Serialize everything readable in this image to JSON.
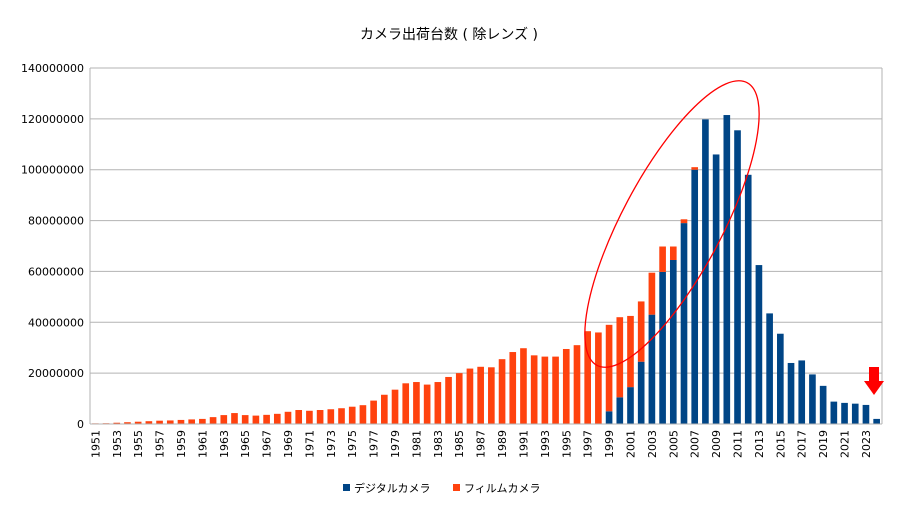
{
  "chart_data": {
    "type": "bar",
    "stacked": true,
    "title": "カメラ出荷台数 ( 除レンズ )",
    "xlabel": "",
    "ylabel": "",
    "ylim": [
      0,
      140000000
    ],
    "yticks": [
      "0",
      "20000000",
      "40000000",
      "60000000",
      "80000000",
      "100000000",
      "120000000",
      "140000000"
    ],
    "ytick_values": [
      0,
      20000000,
      40000000,
      60000000,
      80000000,
      100000000,
      120000000,
      140000000
    ],
    "grid": true,
    "legend_position": "bottom",
    "categories": [
      1951,
      1952,
      1953,
      1954,
      1955,
      1956,
      1957,
      1958,
      1959,
      1960,
      1961,
      1962,
      1963,
      1964,
      1965,
      1966,
      1967,
      1968,
      1969,
      1970,
      1971,
      1972,
      1973,
      1974,
      1975,
      1976,
      1977,
      1978,
      1979,
      1980,
      1981,
      1982,
      1983,
      1984,
      1985,
      1986,
      1987,
      1988,
      1989,
      1990,
      1991,
      1992,
      1993,
      1994,
      1995,
      1996,
      1997,
      1998,
      1999,
      2000,
      2001,
      2002,
      2003,
      2004,
      2005,
      2006,
      2007,
      2008,
      2009,
      2010,
      2011,
      2012,
      2013,
      2014,
      2015,
      2016,
      2017,
      2018,
      2019,
      2020,
      2021,
      2022,
      2023,
      2024
    ],
    "xtick_labels": [
      "1951",
      "1953",
      "1955",
      "1957",
      "1959",
      "1961",
      "1963",
      "1965",
      "1967",
      "1969",
      "1971",
      "1973",
      "1975",
      "1977",
      "1979",
      "1981",
      "1983",
      "1985",
      "1987",
      "1989",
      "1991",
      "1993",
      "1995",
      "1997",
      "1999",
      "2001",
      "2003",
      "2005",
      "2007",
      "2009",
      "2011",
      "2013",
      "2015",
      "2017",
      "2019",
      "2021",
      "2023"
    ],
    "series": [
      {
        "name": "デジタルカメラ",
        "color": "#004586",
        "values": [
          0,
          0,
          0,
          0,
          0,
          0,
          0,
          0,
          0,
          0,
          0,
          0,
          0,
          0,
          0,
          0,
          0,
          0,
          0,
          0,
          0,
          0,
          0,
          0,
          0,
          0,
          0,
          0,
          0,
          0,
          0,
          0,
          0,
          0,
          0,
          0,
          0,
          0,
          0,
          0,
          0,
          0,
          0,
          0,
          0,
          0,
          0,
          0,
          5000000,
          10500000,
          14500000,
          24500000,
          43000000,
          59800000,
          64500000,
          79000000,
          100000000,
          119800000,
          106000000,
          121500000,
          115500000,
          98000000,
          62500000,
          43500000,
          35500000,
          24000000,
          25000000,
          19500000,
          15000000,
          8800000,
          8300000,
          8000000,
          7500000,
          2000000
        ]
      },
      {
        "name": "フィルムカメラ",
        "color": "#ff420e",
        "values": [
          250000,
          300000,
          500000,
          700000,
          900000,
          1100000,
          1300000,
          1400000,
          1600000,
          1800000,
          2000000,
          2700000,
          3500000,
          4300000,
          3500000,
          3300000,
          3600000,
          4000000,
          4800000,
          5500000,
          5200000,
          5500000,
          5800000,
          6200000,
          6800000,
          7400000,
          9200000,
          11500000,
          13500000,
          16000000,
          16500000,
          15500000,
          16500000,
          18500000,
          20000000,
          21800000,
          22500000,
          22300000,
          25500000,
          28300000,
          29800000,
          27000000,
          26500000,
          26500000,
          29500000,
          31000000,
          36500000,
          36000000,
          34000000,
          31500000,
          28000000,
          23700000,
          16500000,
          10000000,
          5300000,
          1500000,
          1000000,
          0,
          0,
          0,
          0,
          0,
          0,
          0,
          0,
          0,
          0,
          0,
          0,
          0,
          0,
          0,
          0,
          0
        ]
      }
    ]
  }
}
